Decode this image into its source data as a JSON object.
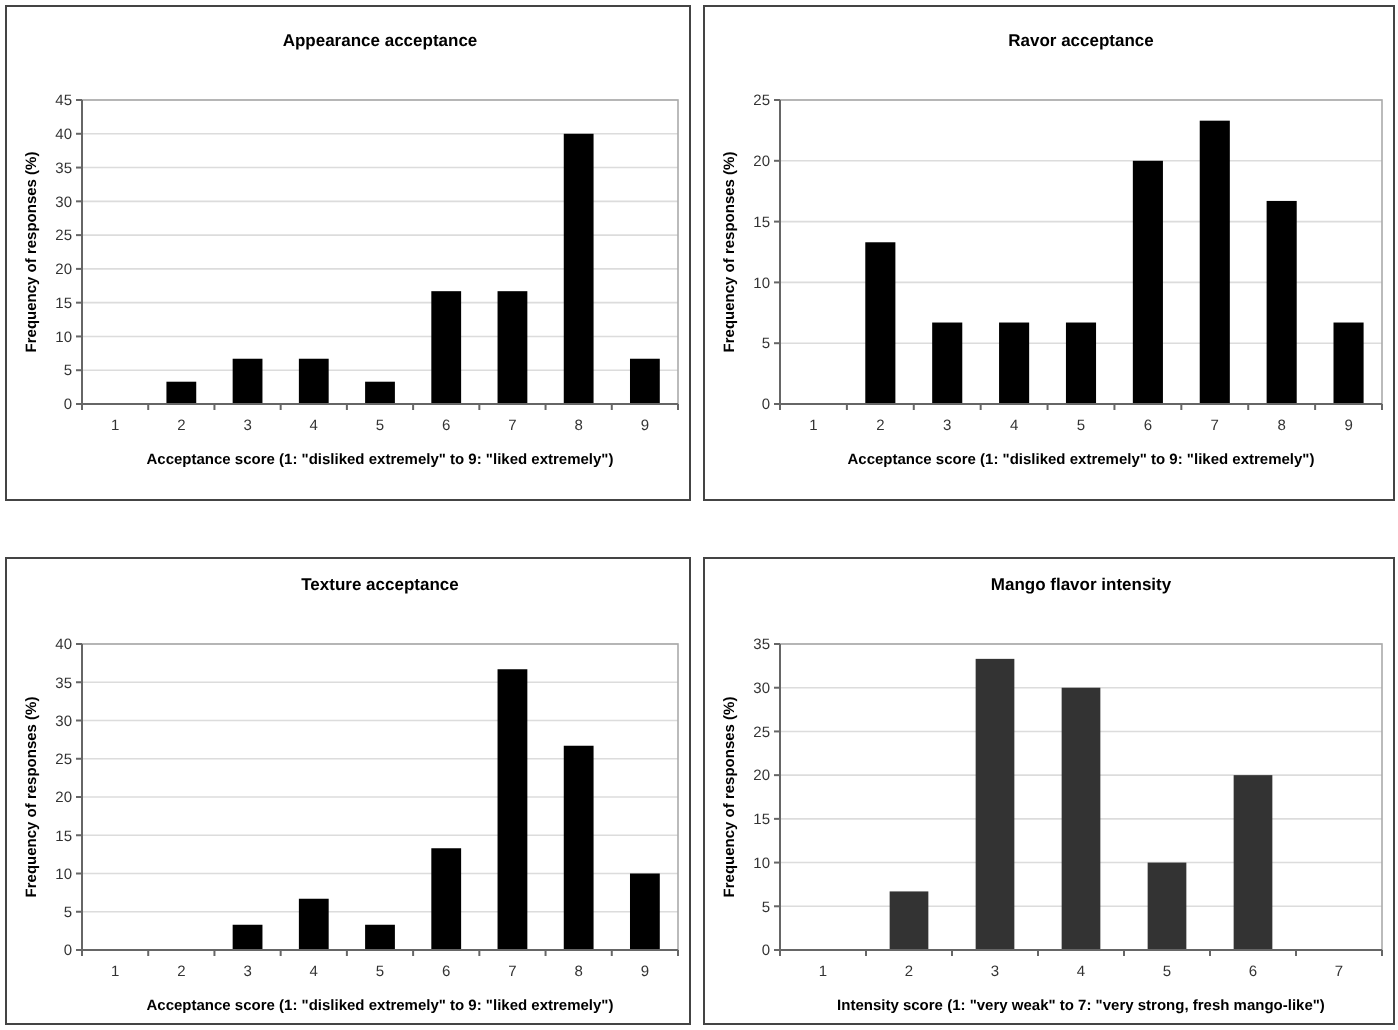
{
  "chart_data": [
    {
      "type": "bar",
      "title": "Appearance acceptance",
      "xlabel": "Acceptance score (1: \"disliked extremely\" to 9: \"liked extremely\")",
      "ylabel": "Frequency of responses (%)",
      "categories": [
        "1",
        "2",
        "3",
        "4",
        "5",
        "6",
        "7",
        "8",
        "9"
      ],
      "values": [
        0,
        3.3,
        6.7,
        6.7,
        3.3,
        16.7,
        16.7,
        40,
        6.7
      ],
      "color": "#000000",
      "ylim": [
        0,
        45
      ],
      "yticks": [
        0,
        5,
        10,
        15,
        20,
        25,
        30,
        35,
        40,
        45
      ],
      "grid": "y"
    },
    {
      "type": "bar",
      "title": "Ravor acceptance",
      "xlabel": "Acceptance score (1: \"disliked extremely\" to 9: \"liked extremely\")",
      "ylabel": "Frequency of responses (%)",
      "categories": [
        "1",
        "2",
        "3",
        "4",
        "5",
        "6",
        "7",
        "8",
        "9"
      ],
      "values": [
        0,
        13.3,
        6.7,
        6.7,
        6.7,
        20,
        23.3,
        16.7,
        6.7
      ],
      "color": "#000000",
      "ylim": [
        0,
        25
      ],
      "yticks": [
        0,
        5,
        10,
        15,
        20,
        25
      ],
      "grid": "y"
    },
    {
      "type": "bar",
      "title": "Texture acceptance",
      "xlabel": "Acceptance score (1: \"disliked extremely\" to 9: \"liked extremely\")",
      "ylabel": "Frequency of responses (%)",
      "categories": [
        "1",
        "2",
        "3",
        "4",
        "5",
        "6",
        "7",
        "8",
        "9"
      ],
      "values": [
        0,
        0,
        3.3,
        6.7,
        3.3,
        13.3,
        36.7,
        26.7,
        10
      ],
      "color": "#000000",
      "ylim": [
        0,
        40
      ],
      "yticks": [
        0,
        5,
        10,
        15,
        20,
        25,
        30,
        35,
        40
      ],
      "grid": "y"
    },
    {
      "type": "bar",
      "title": "Mango flavor intensity",
      "xlabel": "Intensity score (1: \"very weak\" to 7: \"very strong, fresh mango-like\")",
      "ylabel": "Frequency of responses (%)",
      "categories": [
        "1",
        "2",
        "3",
        "4",
        "5",
        "6",
        "7"
      ],
      "values": [
        0,
        6.7,
        33.3,
        30,
        10,
        20,
        0
      ],
      "color": "#333333",
      "ylim": [
        0,
        35
      ],
      "yticks": [
        0,
        5,
        10,
        15,
        20,
        25,
        30,
        35
      ],
      "grid": "y"
    }
  ]
}
